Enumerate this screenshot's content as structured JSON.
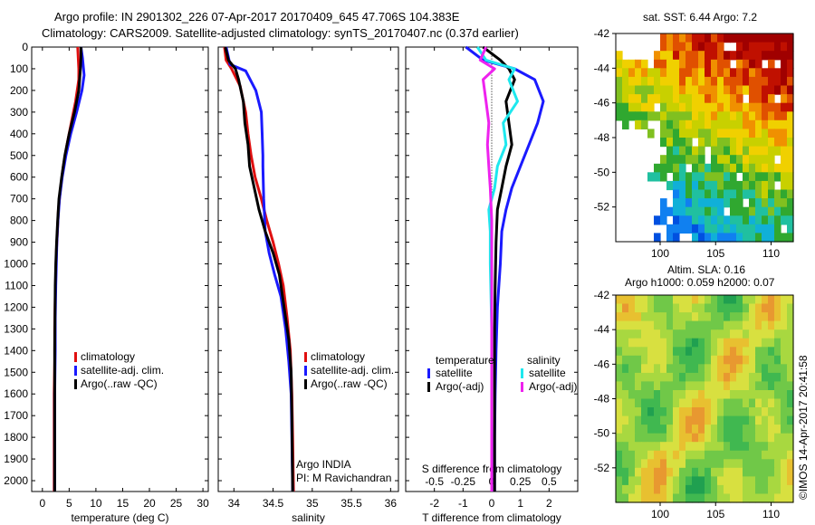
{
  "header": {
    "line1": "Argo profile: IN 2901302_226 07-Apr-2017 20170409_645 47.706S 104.383E",
    "line2": "Climatology: CARS2009. Satellite-adjusted climatology: synTS_20170407.nc (0.37d earlier)"
  },
  "map_top_title": "sat. SST: 6.44  Argo: 7.2",
  "map_bottom_title1": "Altim. SLA: 0.16",
  "map_bottom_title2": "Argo h1000: 0.059 h2000: 0.07",
  "credit": "©IMOS 14-Apr-2017 20:41:58",
  "float_info": {
    "line1": "Argo INDIA",
    "line2": "PI: M Ravichandran"
  },
  "colors": {
    "climatology": "#e01010",
    "satellite": "#1a1aff",
    "argo": "#000000",
    "sat_salinity": "#1ee8ee",
    "argo_salinity": "#ee22ee"
  },
  "chart_data": [
    {
      "type": "line",
      "xlabel": "temperature (deg C)",
      "xlim": [
        -2,
        31
      ],
      "xticks": [
        "0",
        "5",
        "10",
        "15",
        "20",
        "25",
        "30"
      ],
      "ylim": [
        0,
        2050
      ],
      "yticks": [
        "0",
        "100",
        "200",
        "300",
        "400",
        "500",
        "600",
        "700",
        "800",
        "900",
        "1000",
        "1100",
        "1200",
        "1300",
        "1400",
        "1500",
        "1600",
        "1700",
        "1800",
        "1900",
        "2000"
      ],
      "legend": [
        "climatology",
        "satellite-adj. clim.",
        "Argo(..raw -QC)"
      ],
      "series": [
        {
          "name": "climatology",
          "x": [
            6.6,
            6.8,
            6.8,
            6.2,
            5.4,
            4.6,
            3.9,
            3.4,
            3.0,
            2.8,
            2.6,
            2.5,
            2.4,
            2.3,
            2.3,
            2.2,
            2.2,
            2.2,
            2.2,
            2.2
          ],
          "y": [
            0,
            100,
            150,
            250,
            350,
            450,
            550,
            650,
            750,
            850,
            950,
            1050,
            1150,
            1300,
            1450,
            1600,
            1750,
            1900,
            2000,
            2050
          ]
        },
        {
          "name": "satellite-adj. clim.",
          "x": [
            7.2,
            7.5,
            7.8,
            7.4,
            6.4,
            5.3,
            4.4,
            3.7,
            3.2,
            2.9,
            2.7,
            2.6,
            2.5,
            2.4,
            2.4,
            2.3,
            2.3,
            2.3,
            2.3
          ],
          "y": [
            0,
            50,
            130,
            200,
            300,
            400,
            500,
            600,
            700,
            800,
            900,
            1000,
            1100,
            1250,
            1400,
            1600,
            1800,
            2000,
            2050
          ]
        },
        {
          "name": "Argo(..raw -QC)",
          "x": [
            7.2,
            7.2,
            7.1,
            6.8,
            6.0,
            5.0,
            4.2,
            3.6,
            3.1,
            2.85,
            2.65,
            2.5,
            2.4,
            2.35,
            2.3,
            2.3,
            2.3,
            2.3
          ],
          "y": [
            0,
            50,
            100,
            200,
            300,
            400,
            500,
            600,
            700,
            800,
            900,
            1000,
            1100,
            1250,
            1400,
            1600,
            1800,
            2050
          ]
        }
      ]
    },
    {
      "type": "line",
      "xlabel": "salinity",
      "xlim": [
        33.8,
        36.1
      ],
      "xticks": [
        "34",
        "34.5",
        "35",
        "35.5",
        "36"
      ],
      "ylim": [
        0,
        2050
      ],
      "legend": [
        "climatology",
        "satellite-adj. clim.",
        "Argo(..raw -QC)"
      ],
      "series": [
        {
          "name": "climatology",
          "x": [
            33.88,
            33.9,
            33.97,
            34.08,
            34.12,
            34.15,
            34.18,
            34.22,
            34.27,
            34.35,
            34.42,
            34.5,
            34.57,
            34.63,
            34.68,
            34.72,
            34.74,
            34.75,
            34.76
          ],
          "y": [
            0,
            60,
            100,
            180,
            250,
            300,
            400,
            500,
            600,
            700,
            800,
            900,
            1000,
            1100,
            1250,
            1400,
            1600,
            1800,
            2050
          ]
        },
        {
          "name": "satellite-adj. clim.",
          "x": [
            33.9,
            33.95,
            34.15,
            34.28,
            34.35,
            34.36,
            34.37,
            34.37,
            34.38,
            34.4,
            34.45,
            34.52,
            34.6,
            34.66,
            34.7,
            34.73,
            34.74,
            34.75
          ],
          "y": [
            0,
            80,
            110,
            200,
            300,
            400,
            500,
            550,
            700,
            850,
            950,
            1050,
            1150,
            1300,
            1450,
            1600,
            1800,
            2050
          ]
        },
        {
          "name": "Argo(..raw -QC)",
          "x": [
            33.89,
            33.93,
            34.02,
            34.06,
            34.12,
            34.14,
            34.18,
            34.2,
            34.26,
            34.32,
            34.4,
            34.5,
            34.58,
            34.64,
            34.7,
            34.73,
            34.74,
            34.75
          ],
          "y": [
            0,
            60,
            100,
            150,
            250,
            350,
            450,
            550,
            650,
            750,
            850,
            950,
            1050,
            1200,
            1350,
            1500,
            1700,
            2050
          ]
        }
      ]
    },
    {
      "type": "line",
      "xlabel": "T difference from climatology",
      "xlabel_top": "S difference from climatology",
      "xlim": [
        -3,
        3
      ],
      "xticks": [
        "-2",
        "-1",
        "0",
        "1",
        "2"
      ],
      "xticks_top": [
        "-0.5",
        "-0.25",
        "0",
        "0.25",
        "0.5"
      ],
      "ylim": [
        0,
        2050
      ],
      "legend_titles": [
        "temperature",
        "salinity"
      ],
      "legend": [
        "satellite",
        "Argo(-adj)",
        "satellite",
        "Argo(-adj)"
      ],
      "series": [
        {
          "name": "satellite",
          "x": [
            -0.9,
            -0.3,
            0.8,
            1.5,
            1.8,
            1.6,
            1.3,
            1.0,
            0.7,
            0.5,
            0.35,
            0.3,
            0.2,
            0.15,
            0.12,
            0.1,
            0.1
          ],
          "y": [
            0,
            60,
            100,
            150,
            250,
            350,
            450,
            550,
            650,
            750,
            850,
            1000,
            1200,
            1400,
            1600,
            1800,
            2050
          ]
        },
        {
          "name": "Argo(-adj)",
          "x": [
            -0.3,
            0.3,
            0.6,
            0.8,
            0.5,
            0.6,
            0.7,
            0.5,
            0.35,
            0.2,
            0.15,
            0.12,
            0.1,
            0.1,
            0.1,
            0.1
          ],
          "y": [
            0,
            60,
            100,
            150,
            250,
            350,
            450,
            550,
            650,
            750,
            900,
            1100,
            1300,
            1500,
            1800,
            2050
          ]
        },
        {
          "name": "satellite",
          "x": [
            -0.5,
            -0.2,
            0.8,
            0.6,
            0.9,
            0.4,
            0.5,
            0.2,
            0.1,
            -0.1,
            -0.05,
            -0.05,
            0.0,
            0.0,
            0.0
          ],
          "y": [
            0,
            60,
            100,
            150,
            250,
            350,
            450,
            550,
            650,
            750,
            850,
            1000,
            1300,
            1600,
            2050
          ]
        },
        {
          "name": "Argo(-adj)",
          "x": [
            -0.2,
            -0.4,
            0.1,
            -0.3,
            -0.2,
            -0.1,
            -0.15,
            -0.1,
            -0.05,
            0.0,
            0.0,
            0.0,
            0.0
          ],
          "y": [
            0,
            60,
            100,
            150,
            250,
            350,
            450,
            550,
            650,
            800,
            1100,
            1500,
            2050
          ]
        }
      ]
    },
    {
      "type": "heatmap",
      "xlim": [
        96,
        112
      ],
      "ylim": [
        -54,
        -42
      ],
      "xticks": [
        "100",
        "105",
        "110"
      ],
      "yticks": [
        "-42",
        "-44",
        "-46",
        "-48",
        "-50",
        "-52"
      ]
    },
    {
      "type": "heatmap",
      "xlim": [
        96,
        112
      ],
      "ylim": [
        -54,
        -42
      ],
      "xticks": [
        "100",
        "105",
        "110"
      ],
      "yticks": [
        "-42",
        "-44",
        "-46",
        "-48",
        "-50",
        "-52"
      ]
    }
  ]
}
